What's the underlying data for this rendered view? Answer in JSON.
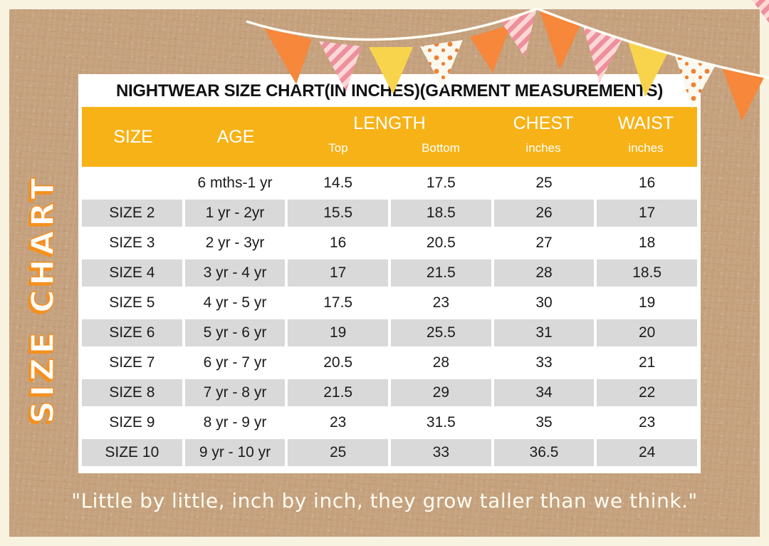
{
  "title": "NIGHTWEAR SIZE CHART(IN INCHES)(GARMENT MEASUREMENTS)",
  "side_label": "SIZE CHART",
  "quote": "\"Little by little, inch by inch, they grow taller than we think.\"",
  "table": {
    "columns": {
      "size": "SIZE",
      "age": "AGE",
      "length": "LENGTH",
      "length_sub": [
        "Top",
        "Bottom"
      ],
      "chest": "CHEST",
      "chest_sub": "inches",
      "waist": "WAIST",
      "waist_sub": "inches"
    },
    "rows": [
      {
        "size": "",
        "age": "6 mths-1 yr",
        "top": "14.5",
        "bottom": "17.5",
        "chest": "25",
        "waist": "16"
      },
      {
        "size": "SIZE 2",
        "age": "1 yr - 2yr",
        "top": "15.5",
        "bottom": "18.5",
        "chest": "26",
        "waist": "17"
      },
      {
        "size": "SIZE 3",
        "age": "2 yr - 3yr",
        "top": "16",
        "bottom": "20.5",
        "chest": "27",
        "waist": "18"
      },
      {
        "size": "SIZE 4",
        "age": "3 yr - 4 yr",
        "top": "17",
        "bottom": "21.5",
        "chest": "28",
        "waist": "18.5"
      },
      {
        "size": "SIZE 5",
        "age": "4 yr - 5 yr",
        "top": "17.5",
        "bottom": "23",
        "chest": "30",
        "waist": "19"
      },
      {
        "size": "SIZE 6",
        "age": "5 yr - 6 yr",
        "top": "19",
        "bottom": "25.5",
        "chest": "31",
        "waist": "20"
      },
      {
        "size": "SIZE 7",
        "age": "6 yr - 7 yr",
        "top": "20.5",
        "bottom": "28",
        "chest": "33",
        "waist": "21"
      },
      {
        "size": "SIZE 8",
        "age": "7 yr - 8 yr",
        "top": "21.5",
        "bottom": "29",
        "chest": "34",
        "waist": "22"
      },
      {
        "size": "SIZE 9",
        "age": "8 yr - 9 yr",
        "top": "23",
        "bottom": "31.5",
        "chest": "35",
        "waist": "23"
      },
      {
        "size": "SIZE 10",
        "age": "9 yr - 10 yr",
        "top": "25",
        "bottom": "33",
        "chest": "36.5",
        "waist": "24"
      }
    ]
  },
  "colors": {
    "header_yellow": "#F7B217",
    "row_gray": "#D9D9D9",
    "kraft_brown": "#C5A17D",
    "cream_border": "#F8F3E1",
    "accent_orange": "#F5901E",
    "pennant_orange": "#F6873B",
    "pennant_yellow": "#F8D44C",
    "pennant_pink": "#EE8F9B",
    "text_dark": "#1C1C1C"
  },
  "decoration": {
    "pennants": [
      "orange-pennant-icon",
      "pink-striped-pennant-icon",
      "yellow-pennant-icon",
      "white-dotted-pennant-icon",
      "orange-pennant-icon",
      "pink-striped-pennant-icon",
      "orange-pennant-icon",
      "pink-striped-pennant-icon",
      "yellow-pennant-icon",
      "white-dotted-pennant-icon",
      "orange-pennant-icon",
      "pink-striped-corner-icon"
    ]
  }
}
